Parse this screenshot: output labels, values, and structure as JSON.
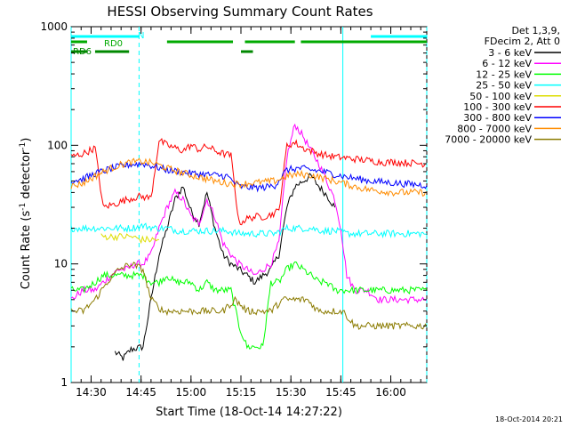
{
  "chart_data": {
    "type": "line",
    "title": "HESSI Observing Summary Count Rates",
    "xlabel": "Start Time (18-Oct-14 14:27:22)",
    "ylabel_main": "Count Rate (s",
    "ylabel_sup1": "-1",
    "ylabel_mid": " detector",
    "ylabel_sup2": "-1",
    "ylabel_end": ")",
    "y_scale": "log",
    "ylim": [
      1,
      1000
    ],
    "xlim_minutes": [
      14.4,
      16.18
    ],
    "x_ticks": [
      {
        "label": "14:30",
        "t": 14.5
      },
      {
        "label": "14:45",
        "t": 14.75
      },
      {
        "label": "15:00",
        "t": 15.0
      },
      {
        "label": "15:15",
        "t": 15.25
      },
      {
        "label": "15:30",
        "t": 15.5
      },
      {
        "label": "15:45",
        "t": 15.75
      },
      {
        "label": "16:00",
        "t": 16.0
      }
    ],
    "y_ticks": [
      {
        "label": "1",
        "v": 1
      },
      {
        "label": "10",
        "v": 10
      },
      {
        "label": "100",
        "v": 100
      },
      {
        "label": "1000",
        "v": 1000
      }
    ],
    "legend_header": [
      "Det 1,3,9,",
      "FDecim 2, Att 0"
    ],
    "series": [
      {
        "name": "3 - 6 keV",
        "color": "#000000",
        "points": [
          [
            14.62,
            1.8
          ],
          [
            14.66,
            1.6
          ],
          [
            14.7,
            1.9
          ],
          [
            14.76,
            2.0
          ],
          [
            14.8,
            5
          ],
          [
            14.84,
            12
          ],
          [
            14.88,
            20
          ],
          [
            14.92,
            35
          ],
          [
            14.96,
            45
          ],
          [
            15.0,
            28
          ],
          [
            15.04,
            22
          ],
          [
            15.08,
            40
          ],
          [
            15.12,
            20
          ],
          [
            15.16,
            12
          ],
          [
            15.2,
            10
          ],
          [
            15.24,
            9
          ],
          [
            15.28,
            8
          ],
          [
            15.32,
            7
          ],
          [
            15.36,
            8
          ],
          [
            15.4,
            9
          ],
          [
            15.44,
            12
          ],
          [
            15.48,
            30
          ],
          [
            15.52,
            45
          ],
          [
            15.56,
            50
          ],
          [
            15.6,
            55
          ],
          [
            15.64,
            45
          ],
          [
            15.68,
            38
          ],
          [
            15.72,
            30
          ]
        ]
      },
      {
        "name": "6 - 12 keV",
        "color": "#ff00ff",
        "points": [
          [
            14.4,
            5
          ],
          [
            14.46,
            6
          ],
          [
            14.52,
            6
          ],
          [
            14.56,
            7
          ],
          [
            14.6,
            8
          ],
          [
            14.64,
            9
          ],
          [
            14.68,
            9
          ],
          [
            14.72,
            10
          ],
          [
            14.76,
            10
          ],
          [
            14.8,
            12
          ],
          [
            14.84,
            20
          ],
          [
            14.88,
            30
          ],
          [
            14.92,
            40
          ],
          [
            14.96,
            35
          ],
          [
            15.0,
            25
          ],
          [
            15.04,
            22
          ],
          [
            15.08,
            35
          ],
          [
            15.12,
            25
          ],
          [
            15.16,
            15
          ],
          [
            15.2,
            12
          ],
          [
            15.24,
            10
          ],
          [
            15.28,
            9
          ],
          [
            15.32,
            8
          ],
          [
            15.36,
            9
          ],
          [
            15.4,
            10
          ],
          [
            15.44,
            15
          ],
          [
            15.48,
            80
          ],
          [
            15.52,
            150
          ],
          [
            15.56,
            120
          ],
          [
            15.6,
            90
          ],
          [
            15.64,
            70
          ],
          [
            15.68,
            50
          ],
          [
            15.72,
            35
          ],
          [
            15.75,
            20
          ],
          [
            15.78,
            8
          ],
          [
            15.82,
            6
          ],
          [
            15.88,
            6
          ],
          [
            15.94,
            5
          ],
          [
            16.0,
            5
          ],
          [
            16.1,
            5
          ],
          [
            16.18,
            5
          ]
        ]
      },
      {
        "name": "12 - 25 keV",
        "color": "#00ff00",
        "points": [
          [
            14.4,
            6
          ],
          [
            14.46,
            6
          ],
          [
            14.52,
            7
          ],
          [
            14.56,
            8
          ],
          [
            14.6,
            8
          ],
          [
            14.64,
            8
          ],
          [
            14.68,
            8
          ],
          [
            14.72,
            8
          ],
          [
            14.76,
            8
          ],
          [
            14.8,
            7
          ],
          [
            14.84,
            7
          ],
          [
            14.88,
            8
          ],
          [
            14.92,
            7
          ],
          [
            14.96,
            7
          ],
          [
            15.0,
            7
          ],
          [
            15.04,
            6
          ],
          [
            15.08,
            7
          ],
          [
            15.12,
            6
          ],
          [
            15.16,
            6
          ],
          [
            15.2,
            6
          ],
          [
            15.24,
            3
          ],
          [
            15.28,
            2
          ],
          [
            15.32,
            2
          ],
          [
            15.36,
            2
          ],
          [
            15.4,
            7
          ],
          [
            15.44,
            7
          ],
          [
            15.48,
            9
          ],
          [
            15.52,
            10
          ],
          [
            15.56,
            9
          ],
          [
            15.6,
            8
          ],
          [
            15.64,
            7
          ],
          [
            15.68,
            7
          ],
          [
            15.72,
            6
          ],
          [
            15.78,
            6
          ],
          [
            15.84,
            6
          ],
          [
            15.9,
            6
          ],
          [
            15.96,
            6
          ],
          [
            16.02,
            6
          ],
          [
            16.1,
            6
          ],
          [
            16.18,
            6
          ]
        ]
      },
      {
        "name": "25 - 50 keV",
        "color": "#00ffff",
        "points": [
          [
            14.4,
            20
          ],
          [
            14.46,
            20
          ],
          [
            14.52,
            20
          ],
          [
            14.58,
            20
          ],
          [
            14.64,
            20
          ],
          [
            14.7,
            20
          ],
          [
            14.76,
            21
          ],
          [
            14.82,
            20
          ],
          [
            14.88,
            20
          ],
          [
            14.94,
            19
          ],
          [
            15.0,
            19
          ],
          [
            15.06,
            19
          ],
          [
            15.12,
            19
          ],
          [
            15.18,
            19
          ],
          [
            15.24,
            18
          ],
          [
            15.3,
            18
          ],
          [
            15.36,
            18
          ],
          [
            15.42,
            18
          ],
          [
            15.48,
            20
          ],
          [
            15.54,
            20
          ],
          [
            15.6,
            20
          ],
          [
            15.66,
            19
          ],
          [
            15.72,
            19
          ],
          [
            15.78,
            18
          ],
          [
            15.84,
            18
          ],
          [
            15.9,
            18
          ],
          [
            15.96,
            18
          ],
          [
            16.02,
            18
          ],
          [
            16.1,
            18
          ],
          [
            16.18,
            18
          ]
        ]
      },
      {
        "name": "50 - 100 keV",
        "color": "#dddd00",
        "points": [
          [
            14.55,
            17
          ],
          [
            14.6,
            17
          ],
          [
            14.65,
            17
          ],
          [
            14.7,
            17
          ],
          [
            14.75,
            16
          ],
          [
            14.8,
            16
          ],
          [
            14.84,
            16
          ]
        ]
      },
      {
        "name": "100 - 300 keV",
        "color": "#ff0000",
        "points": [
          [
            14.4,
            80
          ],
          [
            14.46,
            85
          ],
          [
            14.52,
            95
          ],
          [
            14.56,
            30
          ],
          [
            14.62,
            32
          ],
          [
            14.68,
            35
          ],
          [
            14.74,
            37
          ],
          [
            14.8,
            36
          ],
          [
            14.84,
            110
          ],
          [
            14.88,
            100
          ],
          [
            14.92,
            95
          ],
          [
            14.96,
            90
          ],
          [
            15.0,
            100
          ],
          [
            15.04,
            92
          ],
          [
            15.08,
            98
          ],
          [
            15.12,
            90
          ],
          [
            15.16,
            85
          ],
          [
            15.2,
            82
          ],
          [
            15.24,
            22
          ],
          [
            15.28,
            24
          ],
          [
            15.32,
            25
          ],
          [
            15.36,
            25
          ],
          [
            15.4,
            26
          ],
          [
            15.44,
            28
          ],
          [
            15.48,
            100
          ],
          [
            15.52,
            105
          ],
          [
            15.56,
            95
          ],
          [
            15.6,
            90
          ],
          [
            15.64,
            85
          ],
          [
            15.68,
            82
          ],
          [
            15.72,
            80
          ],
          [
            15.78,
            78
          ],
          [
            15.84,
            76
          ],
          [
            15.9,
            74
          ],
          [
            15.96,
            72
          ],
          [
            16.02,
            72
          ],
          [
            16.1,
            71
          ],
          [
            16.18,
            70
          ]
        ]
      },
      {
        "name": "300 - 800 keV",
        "color": "#0000ff",
        "points": [
          [
            14.4,
            50
          ],
          [
            14.46,
            52
          ],
          [
            14.52,
            58
          ],
          [
            14.58,
            62
          ],
          [
            14.64,
            66
          ],
          [
            14.7,
            69
          ],
          [
            14.76,
            70
          ],
          [
            14.82,
            66
          ],
          [
            14.88,
            62
          ],
          [
            14.94,
            60
          ],
          [
            15.0,
            58
          ],
          [
            15.06,
            57
          ],
          [
            15.12,
            56
          ],
          [
            15.18,
            55
          ],
          [
            15.24,
            45
          ],
          [
            15.3,
            44
          ],
          [
            15.36,
            44
          ],
          [
            15.42,
            46
          ],
          [
            15.48,
            62
          ],
          [
            15.54,
            64
          ],
          [
            15.6,
            62
          ],
          [
            15.66,
            60
          ],
          [
            15.72,
            57
          ],
          [
            15.78,
            54
          ],
          [
            15.84,
            52
          ],
          [
            15.9,
            50
          ],
          [
            15.96,
            49
          ],
          [
            16.02,
            48
          ],
          [
            16.1,
            47
          ],
          [
            16.18,
            46
          ]
        ]
      },
      {
        "name": "800 - 7000 keV",
        "color": "#ff8c00",
        "points": [
          [
            14.4,
            45
          ],
          [
            14.46,
            48
          ],
          [
            14.52,
            55
          ],
          [
            14.58,
            62
          ],
          [
            14.64,
            68
          ],
          [
            14.7,
            72
          ],
          [
            14.76,
            73
          ],
          [
            14.82,
            70
          ],
          [
            14.88,
            64
          ],
          [
            14.94,
            60
          ],
          [
            15.0,
            56
          ],
          [
            15.06,
            53
          ],
          [
            15.12,
            50
          ],
          [
            15.18,
            48
          ],
          [
            15.24,
            47
          ],
          [
            15.3,
            48
          ],
          [
            15.36,
            49
          ],
          [
            15.42,
            50
          ],
          [
            15.48,
            55
          ],
          [
            15.54,
            57
          ],
          [
            15.6,
            56
          ],
          [
            15.66,
            53
          ],
          [
            15.72,
            50
          ],
          [
            15.78,
            47
          ],
          [
            15.84,
            44
          ],
          [
            15.9,
            42
          ],
          [
            15.96,
            41
          ],
          [
            16.02,
            40
          ],
          [
            16.1,
            40
          ],
          [
            16.18,
            40
          ]
        ]
      },
      {
        "name": "7000 - 20000 keV",
        "color": "#8b7b00",
        "points": [
          [
            14.4,
            4
          ],
          [
            14.46,
            4
          ],
          [
            14.52,
            5
          ],
          [
            14.58,
            7
          ],
          [
            14.64,
            9
          ],
          [
            14.7,
            10
          ],
          [
            14.76,
            9
          ],
          [
            14.8,
            5
          ],
          [
            14.86,
            4
          ],
          [
            14.92,
            4
          ],
          [
            14.98,
            4
          ],
          [
            15.04,
            4
          ],
          [
            15.1,
            4
          ],
          [
            15.16,
            4
          ],
          [
            15.22,
            5
          ],
          [
            15.28,
            4
          ],
          [
            15.34,
            4
          ],
          [
            15.4,
            4
          ],
          [
            15.46,
            5
          ],
          [
            15.52,
            5
          ],
          [
            15.58,
            5
          ],
          [
            15.64,
            4
          ],
          [
            15.7,
            4
          ],
          [
            15.76,
            4
          ],
          [
            15.82,
            3
          ],
          [
            15.88,
            3
          ],
          [
            15.94,
            3
          ],
          [
            16.0,
            3
          ],
          [
            16.1,
            3
          ],
          [
            16.18,
            3
          ]
        ]
      }
    ],
    "indicator_bars": [
      {
        "label": "RD0",
        "color": "#00aa00",
        "segments": [
          [
            14.4,
            14.48
          ],
          [
            14.88,
            15.21
          ],
          [
            15.27,
            15.52
          ],
          [
            15.55,
            16.18
          ]
        ]
      },
      {
        "label": "RD6",
        "color": "#008800",
        "segments": [
          [
            14.4,
            14.48
          ],
          [
            14.52,
            14.69
          ],
          [
            15.25,
            15.31
          ]
        ]
      },
      {
        "label": "N",
        "color": "#00ffff",
        "segments": [
          [
            14.4,
            14.74
          ],
          [
            15.9,
            16.18
          ]
        ]
      }
    ],
    "vertical_solid_lines": [
      14.4,
      15.76
    ],
    "vertical_dashed_lines": [
      14.74,
      16.18
    ],
    "footer_date": "18-Oct-2014 20:21"
  }
}
